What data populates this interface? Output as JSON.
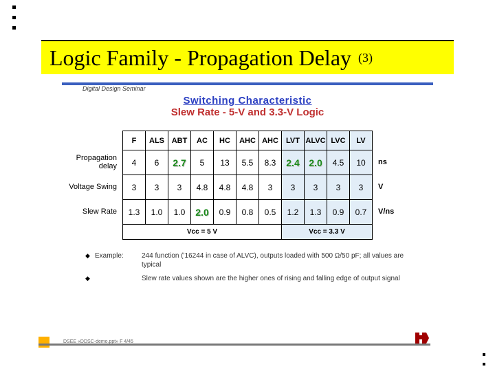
{
  "title": {
    "main": "Logic Family - Propagation Delay",
    "sub": "(3)"
  },
  "seminar": "Digital Design Seminar",
  "chart": {
    "line1": "Switching Characteristic",
    "line2": "Slew Rate - 5-V and 3.3-V Logic"
  },
  "columns": [
    "F",
    "ALS",
    "ABT",
    "AC",
    "HC",
    "AHC",
    "AHC",
    "LVT",
    "ALVC",
    "LVC",
    "LV"
  ],
  "group_split_index": 7,
  "rows": [
    {
      "label": "Propagation delay",
      "unit": "ns",
      "values": [
        "4",
        "6",
        "2.7",
        "5",
        "13",
        "5.5",
        "8.3",
        "2.4",
        "2.0",
        "4.5",
        "10"
      ],
      "highlight": [
        false,
        false,
        true,
        false,
        false,
        false,
        false,
        true,
        true,
        false,
        false
      ]
    },
    {
      "label": "Voltage Swing",
      "unit": "V",
      "values": [
        "3",
        "3",
        "3",
        "4.8",
        "4.8",
        "4.8",
        "3",
        "3",
        "3",
        "3",
        "3"
      ],
      "highlight": [
        false,
        false,
        false,
        false,
        false,
        false,
        false,
        false,
        false,
        false,
        false
      ]
    },
    {
      "label": "Slew Rate",
      "unit": "V/ns",
      "values": [
        "1.3",
        "1.0",
        "1.0",
        "2.0",
        "0.9",
        "0.8",
        "0.5",
        "1.2",
        "1.3",
        "0.9",
        "0.7"
      ],
      "highlight": [
        false,
        false,
        false,
        true,
        false,
        false,
        false,
        false,
        false,
        false,
        false
      ]
    }
  ],
  "group_labels": {
    "left": "Vcc = 5 V",
    "right": "Vcc = 3.3 V"
  },
  "notes": [
    {
      "label": "Example:",
      "text": "244 function ('16244 in case of ALVC), outputs loaded with 500 Ω/50 pF; all values are typical"
    },
    {
      "label": "",
      "text": "Slew rate values shown are the higher ones of rising and falling edge of output signal"
    }
  ],
  "footline": "DSEE    «DDSC-demo.ppt»    F 4/45",
  "colors": {
    "title_bg": "#ffff00",
    "group_b_bg": "#e2edf7",
    "highlight_text": "#1a8a1a",
    "chart_title_l1": "#2b3fc2",
    "chart_title_l2": "#c03030",
    "topline": "#3a5fbf"
  }
}
